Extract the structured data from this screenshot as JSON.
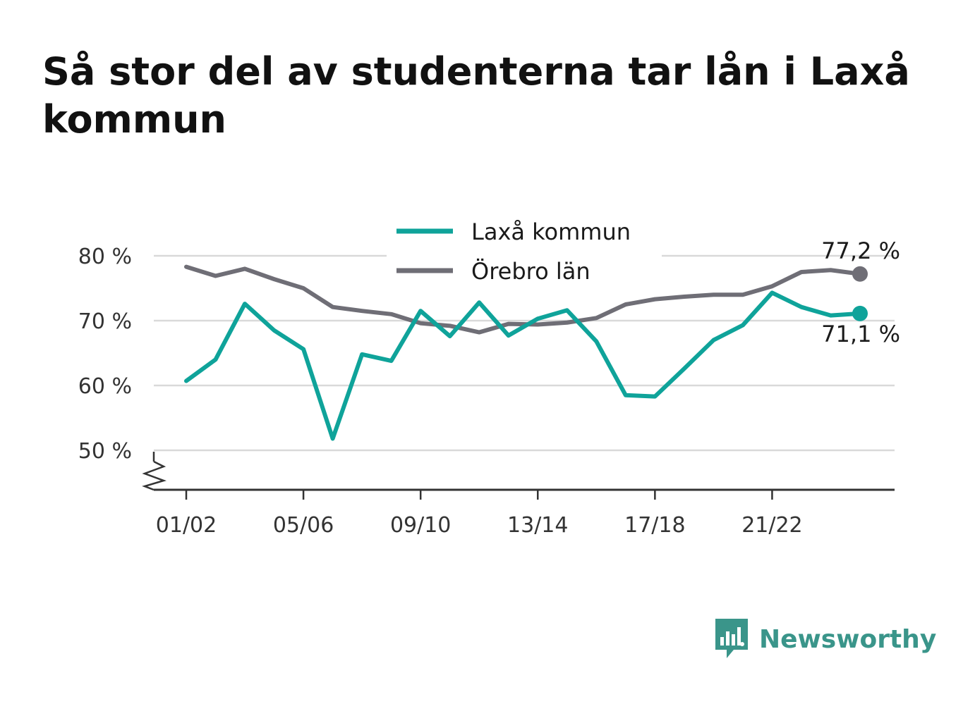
{
  "title": "Så stor del av studenterna tar lån i Laxå kommun",
  "brand": {
    "name": "Newsworthy",
    "icon": "newsworthy-logo-icon"
  },
  "colors": {
    "laxa": "#0fa39a",
    "orebro": "#6f6e76",
    "grid": "#d9d9d9",
    "axis": "#333333",
    "brand": "#3a958a"
  },
  "chart_data": {
    "type": "line",
    "title": "Så stor del av studenterna tar lån i Laxå kommun",
    "xlabel": "",
    "ylabel": "",
    "x": [
      "01/02",
      "02/03",
      "03/04",
      "04/05",
      "05/06",
      "06/07",
      "07/08",
      "08/09",
      "09/10",
      "10/11",
      "11/12",
      "12/13",
      "13/14",
      "14/15",
      "15/16",
      "16/17",
      "17/18",
      "18/19",
      "19/20",
      "20/21",
      "21/22",
      "22/23",
      "23/24",
      "24/25"
    ],
    "x_tick_labels": [
      "01/02",
      "05/06",
      "09/10",
      "13/14",
      "17/18",
      "21/22"
    ],
    "y_ticks": [
      50,
      60,
      70,
      80
    ],
    "y_tick_labels": [
      "50 %",
      "60 %",
      "70 %",
      "80 %"
    ],
    "ylim": [
      45,
      82
    ],
    "y_axis_break": true,
    "grid": true,
    "legend": "top-center",
    "series": [
      {
        "name": "Laxå kommun",
        "color": "#0fa39a",
        "values": [
          60.7,
          64.0,
          72.6,
          68.5,
          65.6,
          51.8,
          64.8,
          63.8,
          71.5,
          67.6,
          72.8,
          67.7,
          70.3,
          71.6,
          66.8,
          58.5,
          58.3,
          62.6,
          67.0,
          69.3,
          74.3,
          72.1,
          70.8,
          71.1
        ],
        "end_label": "71,1 %"
      },
      {
        "name": "Örebro län",
        "color": "#6f6e76",
        "values": [
          78.3,
          76.9,
          78.0,
          76.4,
          75.0,
          72.1,
          71.5,
          71.0,
          69.6,
          69.2,
          68.2,
          69.5,
          69.4,
          69.7,
          70.4,
          72.5,
          73.3,
          73.7,
          74.0,
          74.0,
          75.3,
          77.5,
          77.8,
          77.2
        ],
        "end_label": "77,2 %"
      }
    ]
  }
}
